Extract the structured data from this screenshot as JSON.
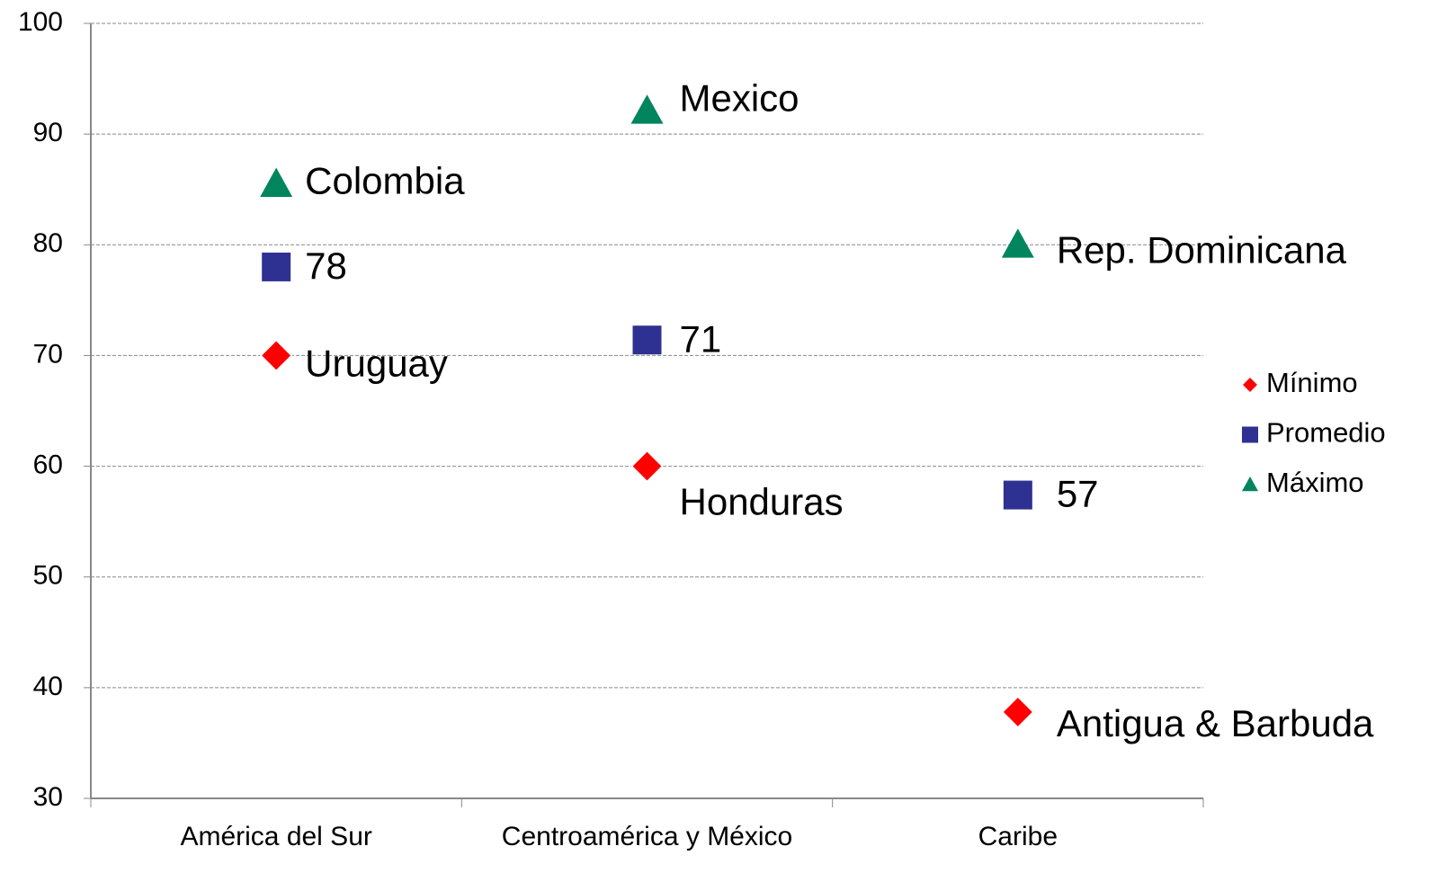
{
  "chart_data": {
    "type": "scatter",
    "categories": [
      "América del Sur",
      "Centroamérica y México",
      "Caribe"
    ],
    "ylim": [
      30,
      100
    ],
    "yticks": [
      30,
      40,
      50,
      60,
      70,
      80,
      90,
      100
    ],
    "grid": true,
    "legend": "right",
    "series": [
      {
        "name": "Mínimo",
        "color": "#ff0000",
        "marker": "diamond",
        "values": [
          70,
          60,
          37.8
        ],
        "labels": [
          "Uruguay",
          "Honduras",
          "Antigua & Barbuda"
        ]
      },
      {
        "name": "Promedio",
        "color": "#2e3192",
        "marker": "square",
        "values": [
          78,
          71.4,
          57.4
        ],
        "value_labels": [
          "78",
          "71",
          "57"
        ]
      },
      {
        "name": "Máximo",
        "color": "#00855f",
        "marker": "triangle",
        "values": [
          85.5,
          92.1,
          80
        ],
        "labels": [
          "Colombia",
          "Mexico",
          "Rep. Dominicana"
        ]
      }
    ]
  }
}
